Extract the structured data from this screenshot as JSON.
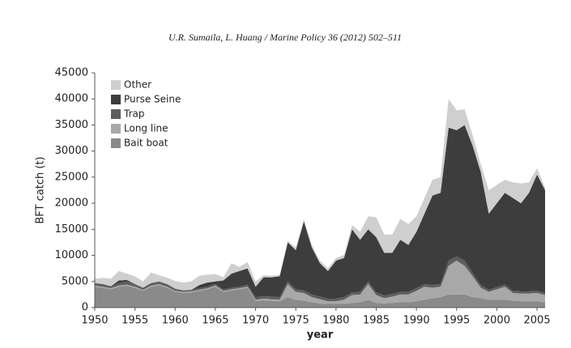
{
  "header": "U.R. Sumaila, L. Huang / Marine Policy 36 (2012) 502–511",
  "chart_data": {
    "type": "stacked_area",
    "y_label": "BFT catch (t)",
    "x_label": "year",
    "x": [
      1950,
      1951,
      1952,
      1953,
      1954,
      1955,
      1956,
      1957,
      1958,
      1959,
      1960,
      1961,
      1962,
      1963,
      1964,
      1965,
      1966,
      1967,
      1968,
      1969,
      1970,
      1971,
      1972,
      1973,
      1974,
      1975,
      1976,
      1977,
      1978,
      1979,
      1980,
      1981,
      1982,
      1983,
      1984,
      1985,
      1986,
      1987,
      1988,
      1989,
      1990,
      1991,
      1992,
      1993,
      1994,
      1995,
      1996,
      1997,
      1998,
      1999,
      2000,
      2001,
      2002,
      2003,
      2004,
      2005,
      2006
    ],
    "series": [
      {
        "name": "Bait boat",
        "color": "#8a8a8a",
        "values": [
          4000,
          3800,
          3500,
          4000,
          4200,
          3800,
          3200,
          4000,
          4300,
          3800,
          3000,
          2800,
          2900,
          3200,
          3500,
          4000,
          3000,
          3300,
          3500,
          3800,
          1200,
          1400,
          1300,
          1200,
          2000,
          1500,
          1300,
          1000,
          800,
          700,
          700,
          700,
          900,
          1000,
          1500,
          900,
          800,
          900,
          1000,
          1000,
          1200,
          1500,
          1800,
          2000,
          2500,
          2500,
          2500,
          2000,
          1800,
          1500,
          1500,
          1500,
          1300,
          1200,
          1200,
          1200,
          1000
        ]
      },
      {
        "name": "Long line",
        "color": "#a8a8a8",
        "values": [
          200,
          200,
          200,
          200,
          200,
          200,
          200,
          200,
          200,
          200,
          200,
          200,
          200,
          200,
          200,
          200,
          200,
          200,
          200,
          200,
          300,
          300,
          300,
          300,
          2500,
          1500,
          1500,
          1000,
          800,
          500,
          500,
          800,
          1500,
          1500,
          3000,
          1500,
          1000,
          1200,
          1500,
          1500,
          2000,
          2500,
          2000,
          2000,
          5500,
          6500,
          5500,
          4000,
          2000,
          1500,
          2000,
          2500,
          1500,
          1500,
          1500,
          1600,
          1400
        ]
      },
      {
        "name": "Trap",
        "color": "#5e5e5e",
        "values": [
          500,
          500,
          400,
          500,
          600,
          500,
          400,
          500,
          500,
          500,
          400,
          300,
          300,
          300,
          300,
          300,
          300,
          300,
          300,
          400,
          500,
          500,
          500,
          500,
          500,
          500,
          500,
          500,
          500,
          500,
          500,
          500,
          500,
          500,
          500,
          500,
          500,
          500,
          500,
          500,
          500,
          500,
          500,
          500,
          1000,
          800,
          1000,
          600,
          500,
          400,
          400,
          400,
          400,
          400,
          400,
          400,
          400
        ]
      },
      {
        "name": "Purse Seine",
        "color": "#3d3d3d",
        "values": [
          0,
          0,
          0,
          500,
          300,
          0,
          0,
          0,
          0,
          0,
          0,
          0,
          0,
          600,
          800,
          500,
          1700,
          2700,
          3000,
          3100,
          2000,
          3600,
          3700,
          4000,
          7500,
          7500,
          13200,
          9000,
          6400,
          5300,
          7300,
          7500,
          12100,
          10000,
          10000,
          10600,
          8200,
          7900,
          10000,
          9000,
          10800,
          13500,
          17200,
          17500,
          25500,
          24200,
          26000,
          24400,
          21700,
          14600,
          16100,
          17600,
          17800,
          16900,
          18900,
          22300,
          19700
        ]
      },
      {
        "name": "Other",
        "color": "#cfcfcf",
        "values": [
          800,
          1200,
          1400,
          1800,
          1200,
          1500,
          1200,
          2000,
          1200,
          1200,
          1500,
          1500,
          1600,
          1800,
          1500,
          1400,
          600,
          2000,
          800,
          1200,
          1000,
          400,
          300,
          300,
          300,
          500,
          500,
          500,
          500,
          500,
          500,
          600,
          800,
          1500,
          2500,
          3800,
          3500,
          3500,
          4000,
          4000,
          3000,
          3000,
          3000,
          3000,
          5500,
          3800,
          3000,
          2000,
          1500,
          4500,
          3500,
          2500,
          3000,
          3800,
          2000,
          1200,
          500
        ]
      }
    ],
    "xlim": [
      1950,
      2006
    ],
    "xticks": [
      1950,
      1955,
      1960,
      1965,
      1970,
      1975,
      1980,
      1985,
      1990,
      1995,
      2000,
      2005
    ],
    "ylim": [
      0,
      45000
    ],
    "yticks": [
      0,
      5000,
      10000,
      15000,
      20000,
      25000,
      30000,
      35000,
      40000,
      45000
    ],
    "legend": "upper-left"
  }
}
